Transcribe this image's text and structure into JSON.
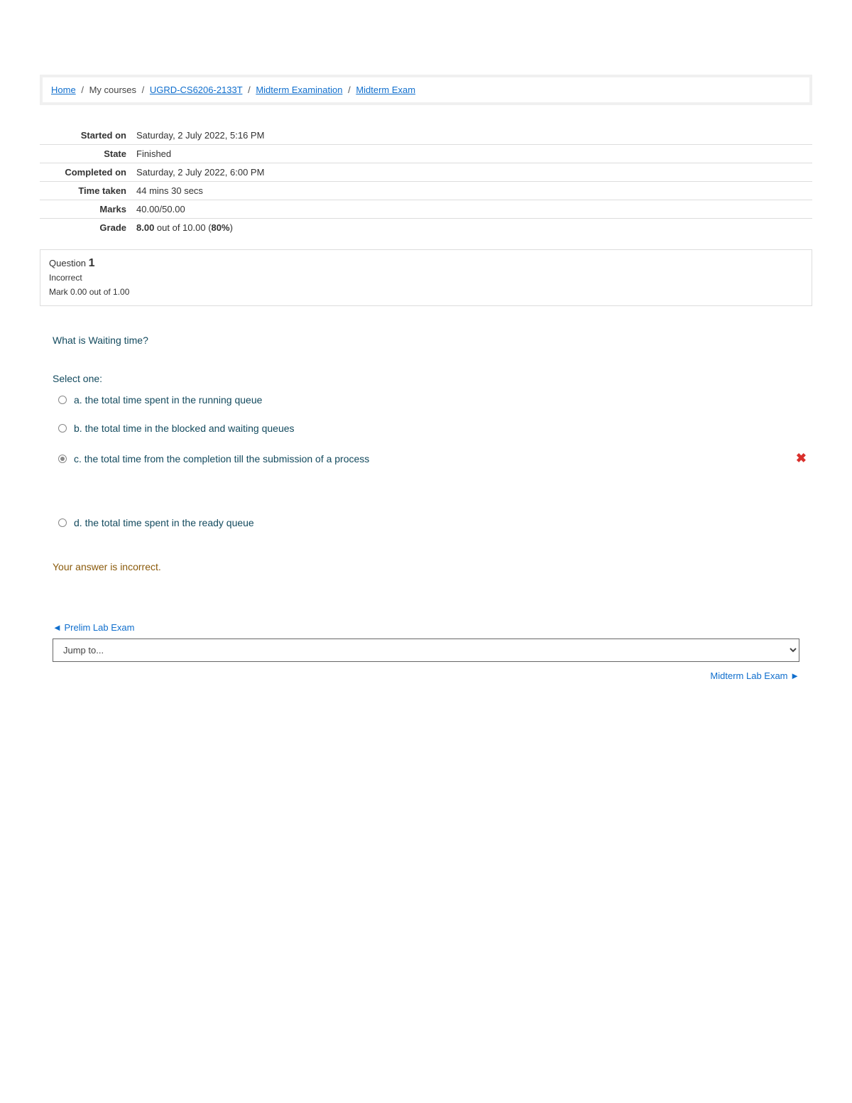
{
  "breadcrumb": {
    "home": "Home",
    "my_courses": "My courses",
    "course_code": "UGRD-CS6206-2133T",
    "section": "Midterm Examination",
    "page": "Midterm Exam"
  },
  "summary": {
    "started_on_label": "Started on",
    "started_on": "Saturday, 2 July 2022, 5:16 PM",
    "state_label": "State",
    "state": "Finished",
    "completed_on_label": "Completed on",
    "completed_on": "Saturday, 2 July 2022, 6:00 PM",
    "time_taken_label": "Time taken",
    "time_taken": "44 mins 30 secs",
    "marks_label": "Marks",
    "marks": "40.00/50.00",
    "grade_label": "Grade",
    "grade_value": "8.00",
    "grade_rest": " out of 10.00 (",
    "grade_pct": "80%",
    "grade_close": ")"
  },
  "question": {
    "label": "Question ",
    "number": "1",
    "status": "Incorrect",
    "mark": "Mark 0.00 out of 1.00",
    "text": "What is Waiting time?",
    "select_one": "Select one:",
    "options": {
      "a": "a. the total time spent in the running queue",
      "b": "b. the total time in the blocked and waiting queues",
      "c": "c. the total time from the completion till the submission of a process",
      "d": "d. the total time spent in the ready queue"
    },
    "feedback": "Your answer is incorrect."
  },
  "nav": {
    "prev_arrow": "◄ ",
    "prev": "Prelim Lab Exam",
    "jump": "Jump to...",
    "next": "Midterm Lab Exam",
    "next_arrow": " ►"
  }
}
